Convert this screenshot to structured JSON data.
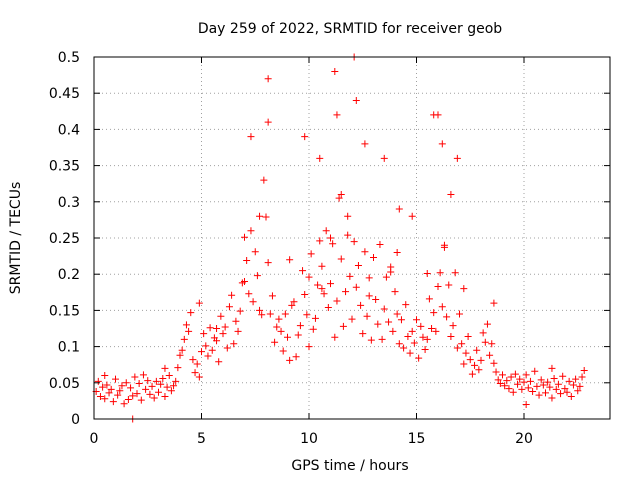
{
  "chart_data": {
    "type": "scatter",
    "title": "Day 259 of 2022, SRMTID for receiver geob",
    "xlabel": "GPS time / hours",
    "ylabel": "SRMTID / TECUs",
    "xlim": [
      0,
      24
    ],
    "ylim": [
      0,
      0.5
    ],
    "x_ticks": [
      0,
      5,
      10,
      15,
      20
    ],
    "y_ticks": [
      0,
      0.05,
      0.1,
      0.15,
      0.2,
      0.25,
      0.3,
      0.35,
      0.4,
      0.45,
      0.5
    ],
    "x_tick_labels": [
      "0",
      "5",
      "10",
      "15",
      "20"
    ],
    "y_tick_labels": [
      "0",
      "0.05",
      "0.1",
      "0.15",
      "0.2",
      "0.25",
      "0.3",
      "0.35",
      "0.4",
      "0.45",
      "0.5"
    ],
    "grid": true,
    "marker": "+",
    "series": [
      {
        "name": "SRMTID",
        "color": "#ff0000",
        "x": [
          0.1,
          0.2,
          0.3,
          0.4,
          0.5,
          0.6,
          0.7,
          0.8,
          0.9,
          1.0,
          1.1,
          1.2,
          1.3,
          1.4,
          1.5,
          1.6,
          1.7,
          1.8,
          1.9,
          2.0,
          2.1,
          2.2,
          2.3,
          2.4,
          2.5,
          2.6,
          2.7,
          2.8,
          2.9,
          3.0,
          3.1,
          3.2,
          3.3,
          3.4,
          3.5,
          3.6,
          3.7,
          3.8,
          3.9,
          4.0,
          4.1,
          4.2,
          4.3,
          4.4,
          4.5,
          4.6,
          4.7,
          4.8,
          4.9,
          5.0,
          5.1,
          5.2,
          5.3,
          5.4,
          5.5,
          5.6,
          5.7,
          5.8,
          5.9,
          6.0,
          6.1,
          6.2,
          6.3,
          6.4,
          6.5,
          6.6,
          6.7,
          6.8,
          6.9,
          7.0,
          7.1,
          7.2,
          7.3,
          7.4,
          7.5,
          7.6,
          7.7,
          7.8,
          7.9,
          8.0,
          8.1,
          8.2,
          8.3,
          8.4,
          8.5,
          8.6,
          8.7,
          8.8,
          8.9,
          9.0,
          9.1,
          9.2,
          9.3,
          9.4,
          9.5,
          9.6,
          9.7,
          9.8,
          9.9,
          10.0,
          10.1,
          10.2,
          10.3,
          10.4,
          10.5,
          10.6,
          10.7,
          10.8,
          10.9,
          11.0,
          11.1,
          11.2,
          11.3,
          11.4,
          11.5,
          11.6,
          11.7,
          11.8,
          11.9,
          12.0,
          12.1,
          12.2,
          12.3,
          12.4,
          12.5,
          12.6,
          12.7,
          12.8,
          12.9,
          13.0,
          13.1,
          13.2,
          13.3,
          13.4,
          13.5,
          13.6,
          13.7,
          13.8,
          13.9,
          14.0,
          14.1,
          14.2,
          14.3,
          14.4,
          14.5,
          14.6,
          14.7,
          14.8,
          14.9,
          15.0,
          15.1,
          15.2,
          15.3,
          15.4,
          15.5,
          15.6,
          15.7,
          15.8,
          15.9,
          16.0,
          16.1,
          16.2,
          16.3,
          16.4,
          16.5,
          16.6,
          16.7,
          16.8,
          16.9,
          17.0,
          17.1,
          17.2,
          17.3,
          17.4,
          17.5,
          17.6,
          17.7,
          17.8,
          17.9,
          18.0,
          18.1,
          18.2,
          18.3,
          18.4,
          18.5,
          18.6,
          18.7,
          18.8,
          18.9,
          19.0,
          19.1,
          19.2,
          19.3,
          19.4,
          19.5,
          19.6,
          19.7,
          19.8,
          19.9,
          20.0,
          20.1,
          20.2,
          20.3,
          20.4,
          20.5,
          20.6,
          20.7,
          20.8,
          20.9,
          21.0,
          21.1,
          21.2,
          21.3,
          21.4,
          21.5,
          21.6,
          21.7,
          21.8,
          21.9,
          22.0,
          22.1,
          22.2,
          22.3,
          22.4,
          22.5,
          22.6,
          22.7,
          22.8,
          1.8,
          4.9,
          5.7,
          7.0,
          7.3,
          7.7,
          8.1,
          8.1,
          9.1,
          9.8,
          10.0,
          10.5,
          10.6,
          11.0,
          11.2,
          11.3,
          11.5,
          11.8,
          12.1,
          12.2,
          12.6,
          12.8,
          13.5,
          13.8,
          14.1,
          14.2,
          14.8,
          15.5,
          15.8,
          16.0,
          16.2,
          16.3,
          16.6,
          16.9,
          17.2,
          18.6,
          20.1,
          21.3,
          0.5,
          3.3
        ],
        "y": [
          0.038,
          0.052,
          0.031,
          0.044,
          0.028,
          0.047,
          0.036,
          0.041,
          0.024,
          0.055,
          0.033,
          0.039,
          0.046,
          0.021,
          0.05,
          0.027,
          0.043,
          0.032,
          0.058,
          0.035,
          0.049,
          0.026,
          0.061,
          0.041,
          0.053,
          0.034,
          0.045,
          0.029,
          0.052,
          0.037,
          0.048,
          0.056,
          0.031,
          0.044,
          0.06,
          0.039,
          0.046,
          0.052,
          0.071,
          0.088,
          0.095,
          0.11,
          0.13,
          0.121,
          0.147,
          0.082,
          0.064,
          0.076,
          0.058,
          0.093,
          0.118,
          0.101,
          0.087,
          0.126,
          0.095,
          0.112,
          0.108,
          0.079,
          0.142,
          0.118,
          0.127,
          0.098,
          0.155,
          0.171,
          0.104,
          0.135,
          0.121,
          0.149,
          0.188,
          0.251,
          0.219,
          0.173,
          0.26,
          0.162,
          0.231,
          0.198,
          0.15,
          0.144,
          0.33,
          0.279,
          0.216,
          0.145,
          0.17,
          0.106,
          0.127,
          0.138,
          0.121,
          0.094,
          0.145,
          0.113,
          0.081,
          0.157,
          0.162,
          0.086,
          0.116,
          0.129,
          0.205,
          0.172,
          0.144,
          0.196,
          0.228,
          0.124,
          0.139,
          0.185,
          0.246,
          0.211,
          0.173,
          0.26,
          0.154,
          0.187,
          0.242,
          0.113,
          0.163,
          0.305,
          0.221,
          0.128,
          0.176,
          0.254,
          0.197,
          0.138,
          0.245,
          0.182,
          0.212,
          0.157,
          0.118,
          0.231,
          0.142,
          0.195,
          0.109,
          0.223,
          0.165,
          0.131,
          0.241,
          0.11,
          0.152,
          0.196,
          0.134,
          0.203,
          0.121,
          0.176,
          0.145,
          0.104,
          0.137,
          0.098,
          0.158,
          0.114,
          0.091,
          0.121,
          0.105,
          0.137,
          0.084,
          0.128,
          0.113,
          0.096,
          0.201,
          0.166,
          0.125,
          0.147,
          0.121,
          0.183,
          0.202,
          0.155,
          0.237,
          0.141,
          0.185,
          0.114,
          0.129,
          0.202,
          0.098,
          0.145,
          0.104,
          0.076,
          0.091,
          0.114,
          0.082,
          0.062,
          0.074,
          0.095,
          0.068,
          0.081,
          0.119,
          0.106,
          0.131,
          0.088,
          0.104,
          0.077,
          0.065,
          0.054,
          0.049,
          0.061,
          0.046,
          0.053,
          0.042,
          0.058,
          0.037,
          0.062,
          0.048,
          0.055,
          0.041,
          0.051,
          0.061,
          0.043,
          0.052,
          0.038,
          0.066,
          0.045,
          0.033,
          0.054,
          0.047,
          0.036,
          0.051,
          0.044,
          0.029,
          0.056,
          0.041,
          0.048,
          0.035,
          0.059,
          0.042,
          0.037,
          0.052,
          0.031,
          0.047,
          0.055,
          0.039,
          0.045,
          0.058,
          0.067,
          0.0,
          0.16,
          0.125,
          0.19,
          0.39,
          0.28,
          0.47,
          0.41,
          0.22,
          0.39,
          0.1,
          0.36,
          0.18,
          0.25,
          0.48,
          0.42,
          0.31,
          0.28,
          0.5,
          0.44,
          0.38,
          0.17,
          0.36,
          0.21,
          0.23,
          0.29,
          0.28,
          0.11,
          0.42,
          0.42,
          0.38,
          0.24,
          0.31,
          0.36,
          0.18,
          0.16,
          0.02,
          0.07,
          0.06,
          0.07
        ]
      }
    ]
  }
}
